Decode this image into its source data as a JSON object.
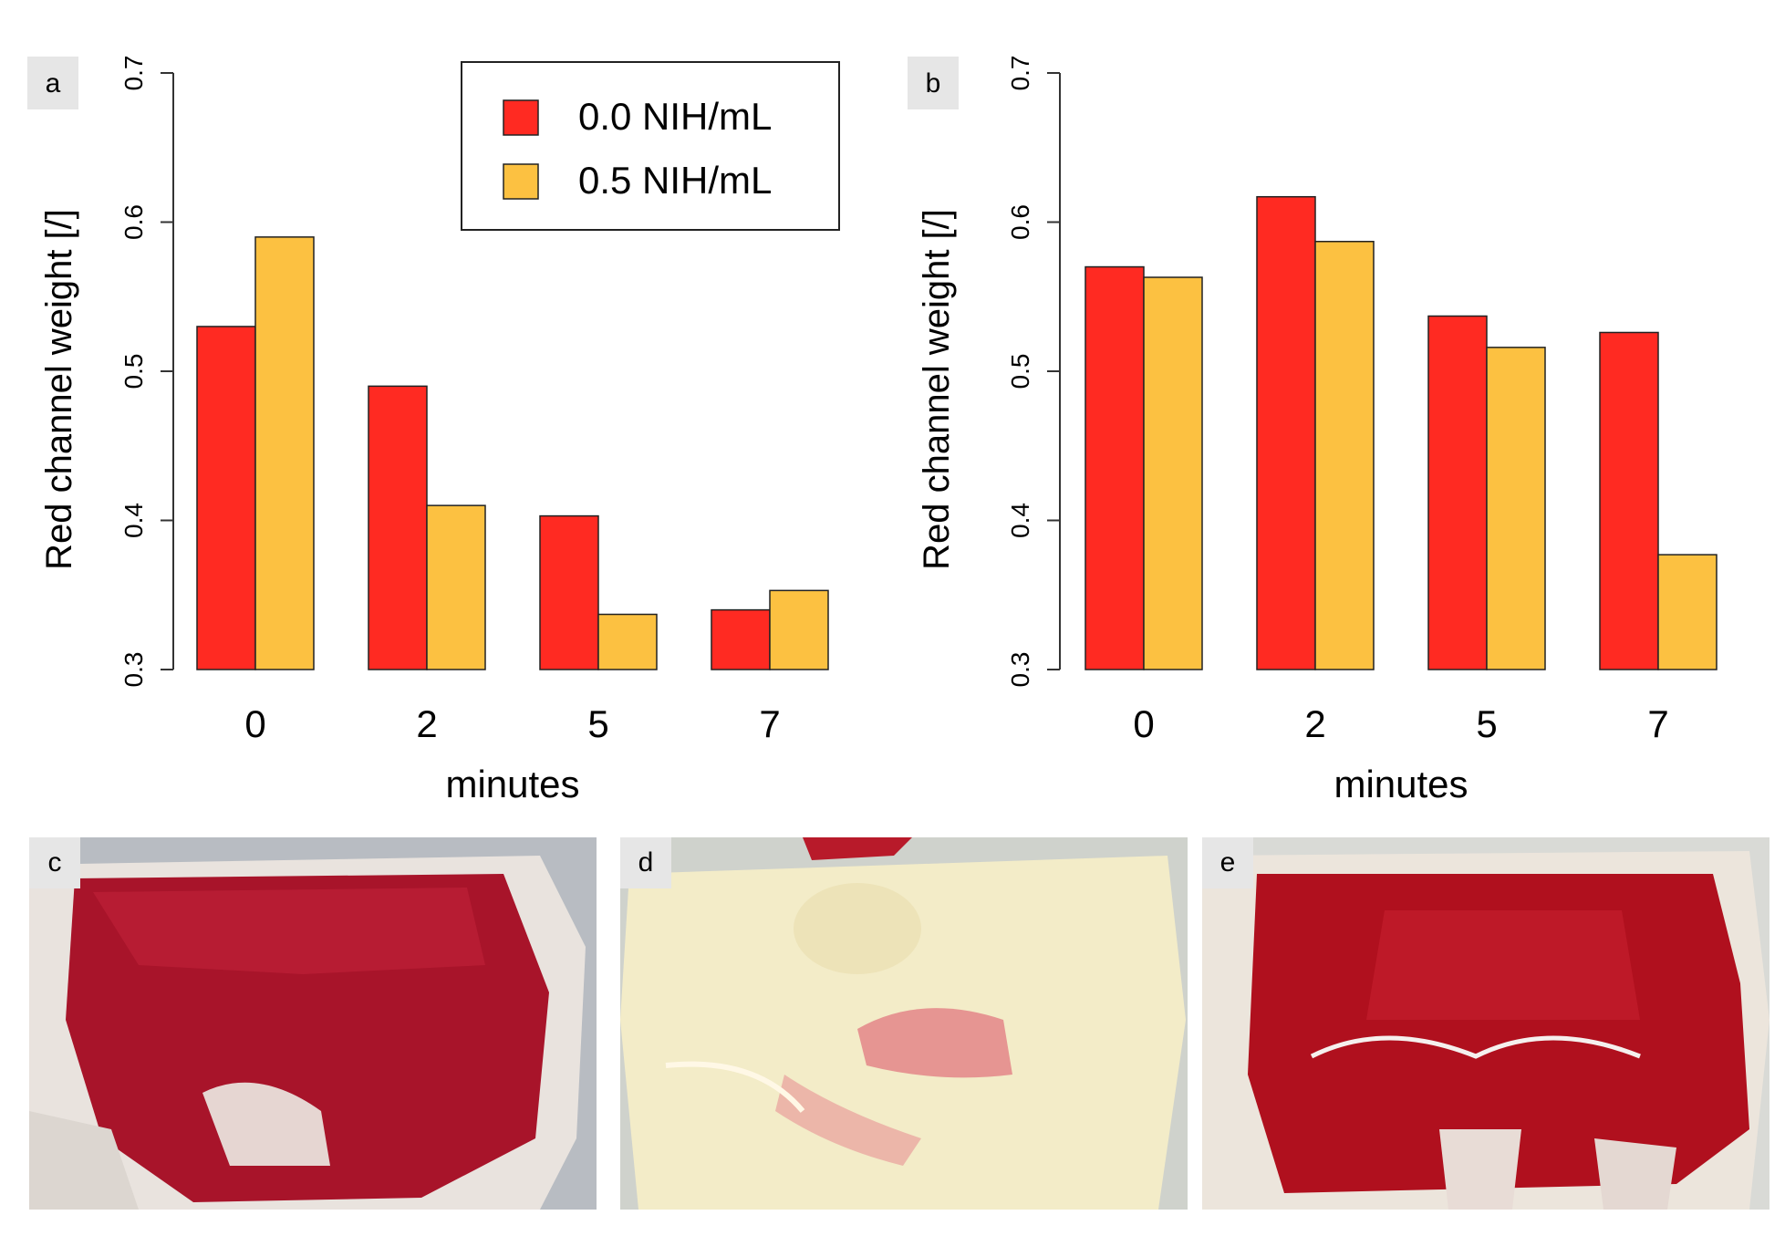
{
  "chart_data": [
    {
      "type": "bar",
      "panel_label": "a",
      "categories": [
        "0",
        "2",
        "5",
        "7"
      ],
      "series": [
        {
          "name": "0.0 NIH/mL",
          "color": "#ff2a22",
          "values": [
            0.53,
            0.49,
            0.403,
            0.34
          ]
        },
        {
          "name": "0.5 NIH/mL",
          "color": "#fcc141",
          "values": [
            0.59,
            0.41,
            0.337,
            0.353
          ]
        }
      ],
      "xlabel": "minutes",
      "ylabel": "Red channel weight [/]",
      "ylim": [
        0.3,
        0.7
      ],
      "yticks": [
        "0.3",
        "0.4",
        "0.5",
        "0.6",
        "0.7"
      ],
      "legend": "top-right"
    },
    {
      "type": "bar",
      "panel_label": "b",
      "categories": [
        "0",
        "2",
        "5",
        "7"
      ],
      "series": [
        {
          "name": "0.0 NIH/mL",
          "color": "#ff2a22",
          "values": [
            0.57,
            0.617,
            0.537,
            0.526
          ]
        },
        {
          "name": "0.5 NIH/mL",
          "color": "#fcc141",
          "values": [
            0.563,
            0.587,
            0.516,
            0.377
          ]
        }
      ],
      "xlabel": "minutes",
      "ylabel": "Red channel weight [/]",
      "ylim": [
        0.3,
        0.7
      ],
      "yticks": [
        "0.3",
        "0.4",
        "0.5",
        "0.6",
        "0.7"
      ]
    }
  ],
  "photos": [
    {
      "label": "c",
      "description_color": "#a8142a"
    },
    {
      "label": "d",
      "description_color": "#f3ecc8"
    },
    {
      "label": "e",
      "description_color": "#b0101e"
    }
  ]
}
